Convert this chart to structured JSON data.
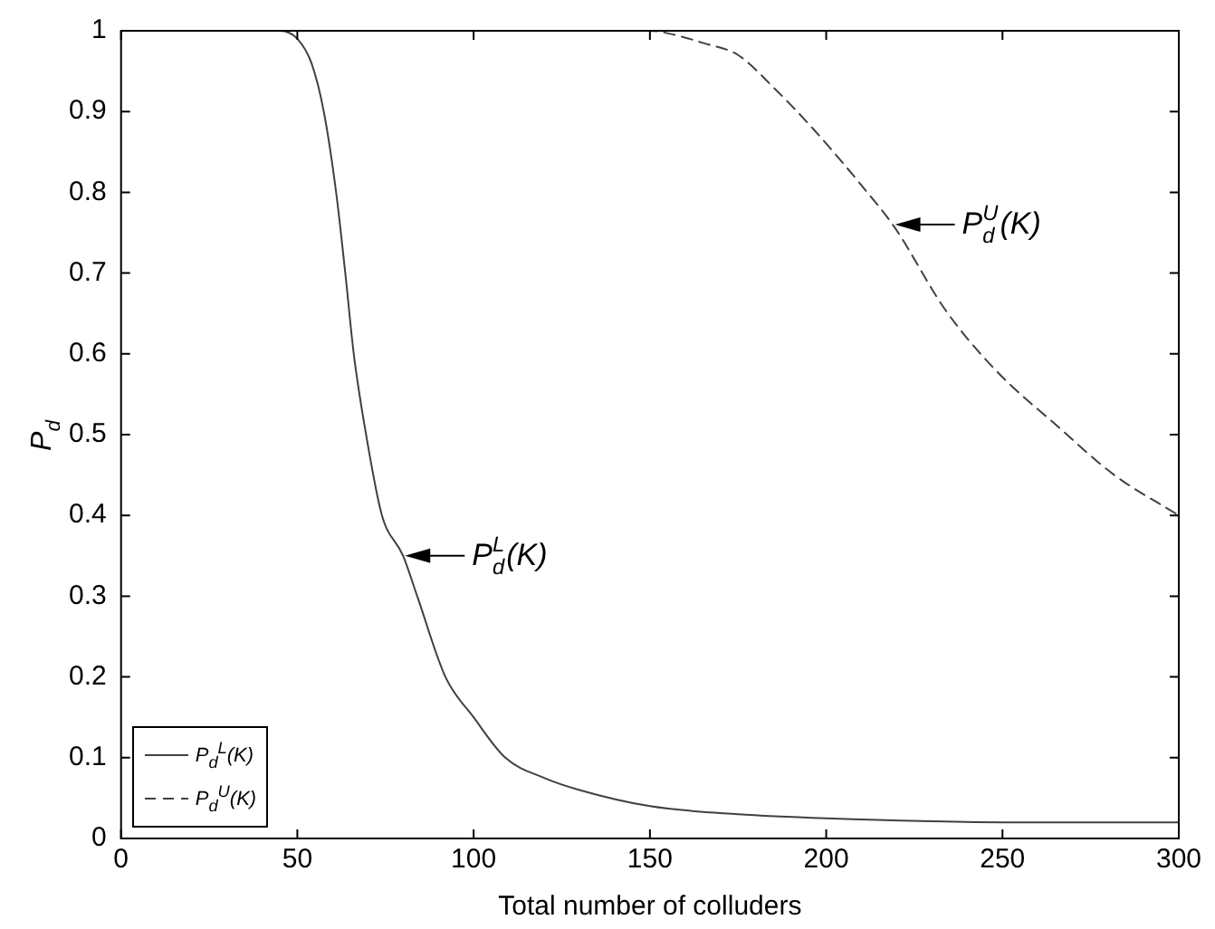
{
  "chart_data": {
    "type": "line",
    "xlabel": "Total number of colluders",
    "ylabel": "P$_{d}$",
    "xlim": [
      0,
      300
    ],
    "xticks": [
      0,
      50,
      100,
      150,
      200,
      250,
      300
    ],
    "ylim": [
      0,
      1
    ],
    "yticks": [
      0,
      0.1,
      0.2,
      0.3,
      0.4,
      0.5,
      0.6,
      0.7,
      0.8,
      0.9,
      1
    ],
    "grid": false,
    "legend": "bottom left",
    "series": [
      {
        "name": "P$_{d}$$^{L}$(K)",
        "color": "#404040",
        "line_style": "solid",
        "x": [
          0,
          45,
          50,
          54,
          57.5,
          61,
          63.6,
          66,
          69.5,
          74,
          80,
          84,
          92,
          100,
          109,
          120,
          130,
          150,
          175,
          200,
          250,
          300
        ],
        "values": [
          1,
          1,
          0.99,
          0.96,
          0.9,
          0.8,
          0.7,
          0.6,
          0.5,
          0.4,
          0.35,
          0.3,
          0.2,
          0.15,
          0.1,
          0.075,
          0.06,
          0.04,
          0.03,
          0.025,
          0.02,
          0.02
        ]
      },
      {
        "name": "P$_{d}$$^{U}$(K)",
        "color": "#404040",
        "line_style": "dashed",
        "x": [
          0,
          150,
          157,
          165,
          175,
          185,
          196,
          210.5,
          219.5,
          233.7,
          248,
          265.7,
          281.7,
          300
        ],
        "values": [
          1,
          1,
          0.995,
          0.985,
          0.97,
          0.93,
          0.88,
          0.806,
          0.756,
          0.655,
          0.58,
          0.51,
          0.45,
          0.4
        ]
      }
    ],
    "annotations": [
      {
        "text": "P$_{d}$$^{L}$(K)",
        "x": 80,
        "y": 0.35
      },
      {
        "text": "P$_{d}$$^{U}$(K)",
        "x": 219,
        "y": 0.76
      }
    ]
  }
}
